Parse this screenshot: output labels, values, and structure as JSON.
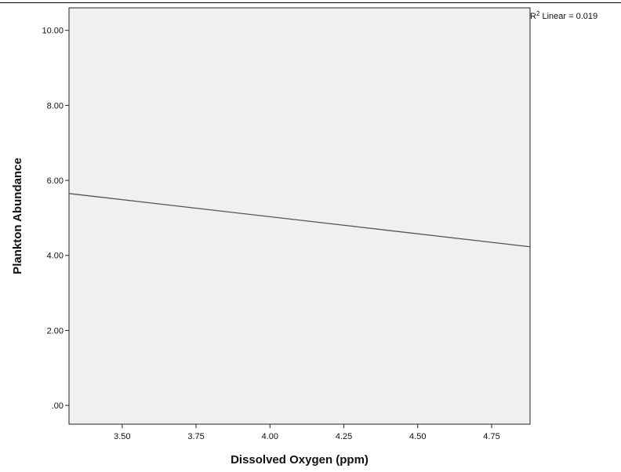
{
  "chart_data": {
    "type": "line",
    "xlabel": "Dissolved Oxygen (ppm)",
    "ylabel": "Plankton Abundance",
    "xlim": [
      3.32,
      4.88
    ],
    "ylim": [
      -0.5,
      10.6
    ],
    "xticks": [
      {
        "value": 3.5,
        "label": "3.50"
      },
      {
        "value": 3.75,
        "label": "3.75"
      },
      {
        "value": 4.0,
        "label": "4.00"
      },
      {
        "value": 4.25,
        "label": "4.25"
      },
      {
        "value": 4.5,
        "label": "4.50"
      },
      {
        "value": 4.75,
        "label": "4.75"
      }
    ],
    "yticks": [
      {
        "value": 0,
        "label": ".00"
      },
      {
        "value": 2,
        "label": "2.00"
      },
      {
        "value": 4,
        "label": "4.00"
      },
      {
        "value": 6,
        "label": "6.00"
      },
      {
        "value": 8,
        "label": "8.00"
      },
      {
        "value": 10,
        "label": "10.00"
      }
    ],
    "series": [
      {
        "type": "fit-line",
        "x": [
          3.32,
          4.88
        ],
        "y": [
          5.65,
          4.23
        ]
      }
    ],
    "annotation": {
      "prefix": "R",
      "superscript": "2",
      "text": " Linear = 0.019"
    },
    "grid": false,
    "colors": {
      "plot_background": "#f0f0f0",
      "line": "#555555",
      "axis": "#222222"
    }
  }
}
